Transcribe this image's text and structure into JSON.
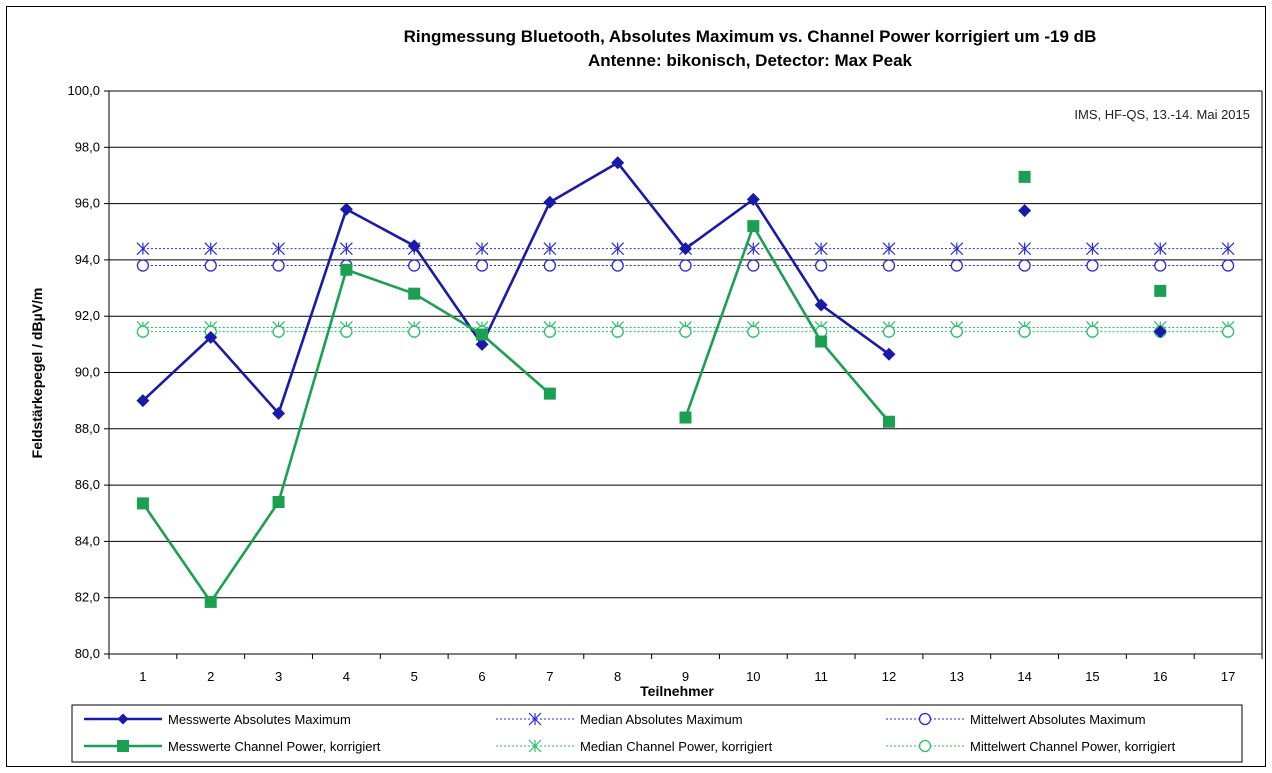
{
  "chart_data": {
    "type": "line",
    "title": "Ringmessung Bluetooth, Absolutes Maximum vs. Channel Power korrigiert um -19 dB",
    "subtitle": "Antenne: bikonisch, Detector: Max Peak",
    "annotation": "IMS, HF-QS, 13.-14. Mai 2015",
    "xlabel": "Teilnehmer",
    "ylabel": "Feldstärkepegel / dBµV/m",
    "x": [
      1,
      2,
      3,
      4,
      5,
      6,
      7,
      8,
      9,
      10,
      11,
      12,
      13,
      14,
      15,
      16,
      17
    ],
    "x_tick_labels": [
      "1",
      "2",
      "3",
      "4",
      "5",
      "6",
      "7",
      "8",
      "9",
      "10",
      "11",
      "12",
      "13",
      "14",
      "15",
      "16",
      "17"
    ],
    "ylim": [
      80,
      100
    ],
    "y_ticks": [
      80,
      82,
      84,
      86,
      88,
      90,
      92,
      94,
      96,
      98,
      100
    ],
    "y_tick_labels": [
      "80,0",
      "82,0",
      "84,0",
      "86,0",
      "88,0",
      "90,0",
      "92,0",
      "94,0",
      "96,0",
      "98,0",
      "100,0"
    ],
    "grid": "horizontal",
    "legend_position": "bottom",
    "series": [
      {
        "name": "Messwerte Absolutes Maximum",
        "color": "#1a1aaa",
        "marker": "diamond",
        "line": "solid",
        "values": [
          89.0,
          91.25,
          88.55,
          95.8,
          94.5,
          91.0,
          96.05,
          97.45,
          94.4,
          96.15,
          92.4,
          90.65,
          null,
          95.75,
          null,
          91.45,
          null
        ]
      },
      {
        "name": "Messwerte Channel Power, korrigiert",
        "color": "#1aa050",
        "marker": "square",
        "line": "solid",
        "values": [
          85.35,
          81.85,
          85.4,
          93.65,
          92.8,
          91.35,
          89.25,
          null,
          88.4,
          95.2,
          91.1,
          88.25,
          null,
          96.95,
          null,
          92.9,
          null
        ]
      },
      {
        "name": "Median Absolutes Maximum",
        "color": "#2a2ad8",
        "marker": "asterisk",
        "line": "dotted",
        "values": [
          94.4,
          94.4,
          94.4,
          94.4,
          94.4,
          94.4,
          94.4,
          94.4,
          94.4,
          94.4,
          94.4,
          94.4,
          94.4,
          94.4,
          94.4,
          94.4,
          94.4
        ]
      },
      {
        "name": "Median Channel Power, korrigiert",
        "color": "#2bbf6a",
        "marker": "asterisk",
        "line": "dotted",
        "values": [
          91.6,
          91.6,
          91.6,
          91.6,
          91.6,
          91.6,
          91.6,
          91.6,
          91.6,
          91.6,
          91.6,
          91.6,
          91.6,
          91.6,
          91.6,
          91.6,
          91.6
        ]
      },
      {
        "name": "Mittelwert Absolutes Maximum",
        "color": "#2a2ad8",
        "marker": "circle",
        "line": "dotted",
        "values": [
          93.8,
          93.8,
          93.8,
          93.8,
          93.8,
          93.8,
          93.8,
          93.8,
          93.8,
          93.8,
          93.8,
          93.8,
          93.8,
          93.8,
          93.8,
          93.8,
          93.8
        ]
      },
      {
        "name": "Mittelwert Channel Power, korrigiert",
        "color": "#2bbf6a",
        "marker": "circle",
        "line": "dotted",
        "values": [
          91.45,
          91.45,
          91.45,
          91.45,
          91.45,
          91.45,
          91.45,
          91.45,
          91.45,
          91.45,
          91.45,
          91.45,
          91.45,
          91.45,
          91.45,
          91.45,
          91.45
        ]
      }
    ],
    "legend_order": [
      0,
      2,
      4,
      1,
      3,
      5
    ]
  }
}
